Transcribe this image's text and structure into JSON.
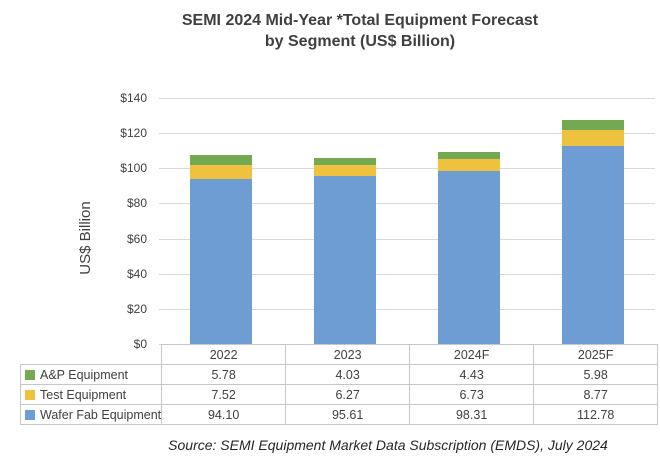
{
  "title": {
    "line1": "SEMI 2024 Mid-Year *Total Equipment Forecast",
    "line2": "by Segment (US$ Billion)"
  },
  "chart_data": {
    "type": "bar",
    "stacked": true,
    "categories": [
      "2022",
      "2023",
      "2024F",
      "2025F"
    ],
    "series": [
      {
        "name": "Wafer Fab Equipment",
        "color": "#6D9DD2",
        "values": [
          94.1,
          95.61,
          98.31,
          112.78
        ]
      },
      {
        "name": "Test Equipment",
        "color": "#EEC13E",
        "values": [
          7.52,
          6.27,
          6.73,
          8.77
        ]
      },
      {
        "name": "A&P Equipment",
        "color": "#73A950",
        "values": [
          5.78,
          4.03,
          4.43,
          5.98
        ]
      }
    ],
    "ylabel": "US$ Billion",
    "ylim": [
      0,
      140
    ],
    "ytick_step": 20,
    "ytick_prefix": "$",
    "grid": true,
    "legend_position": "table-left"
  },
  "source": "Source: SEMI Equipment Market Data Subscription (EMDS), July 2024"
}
